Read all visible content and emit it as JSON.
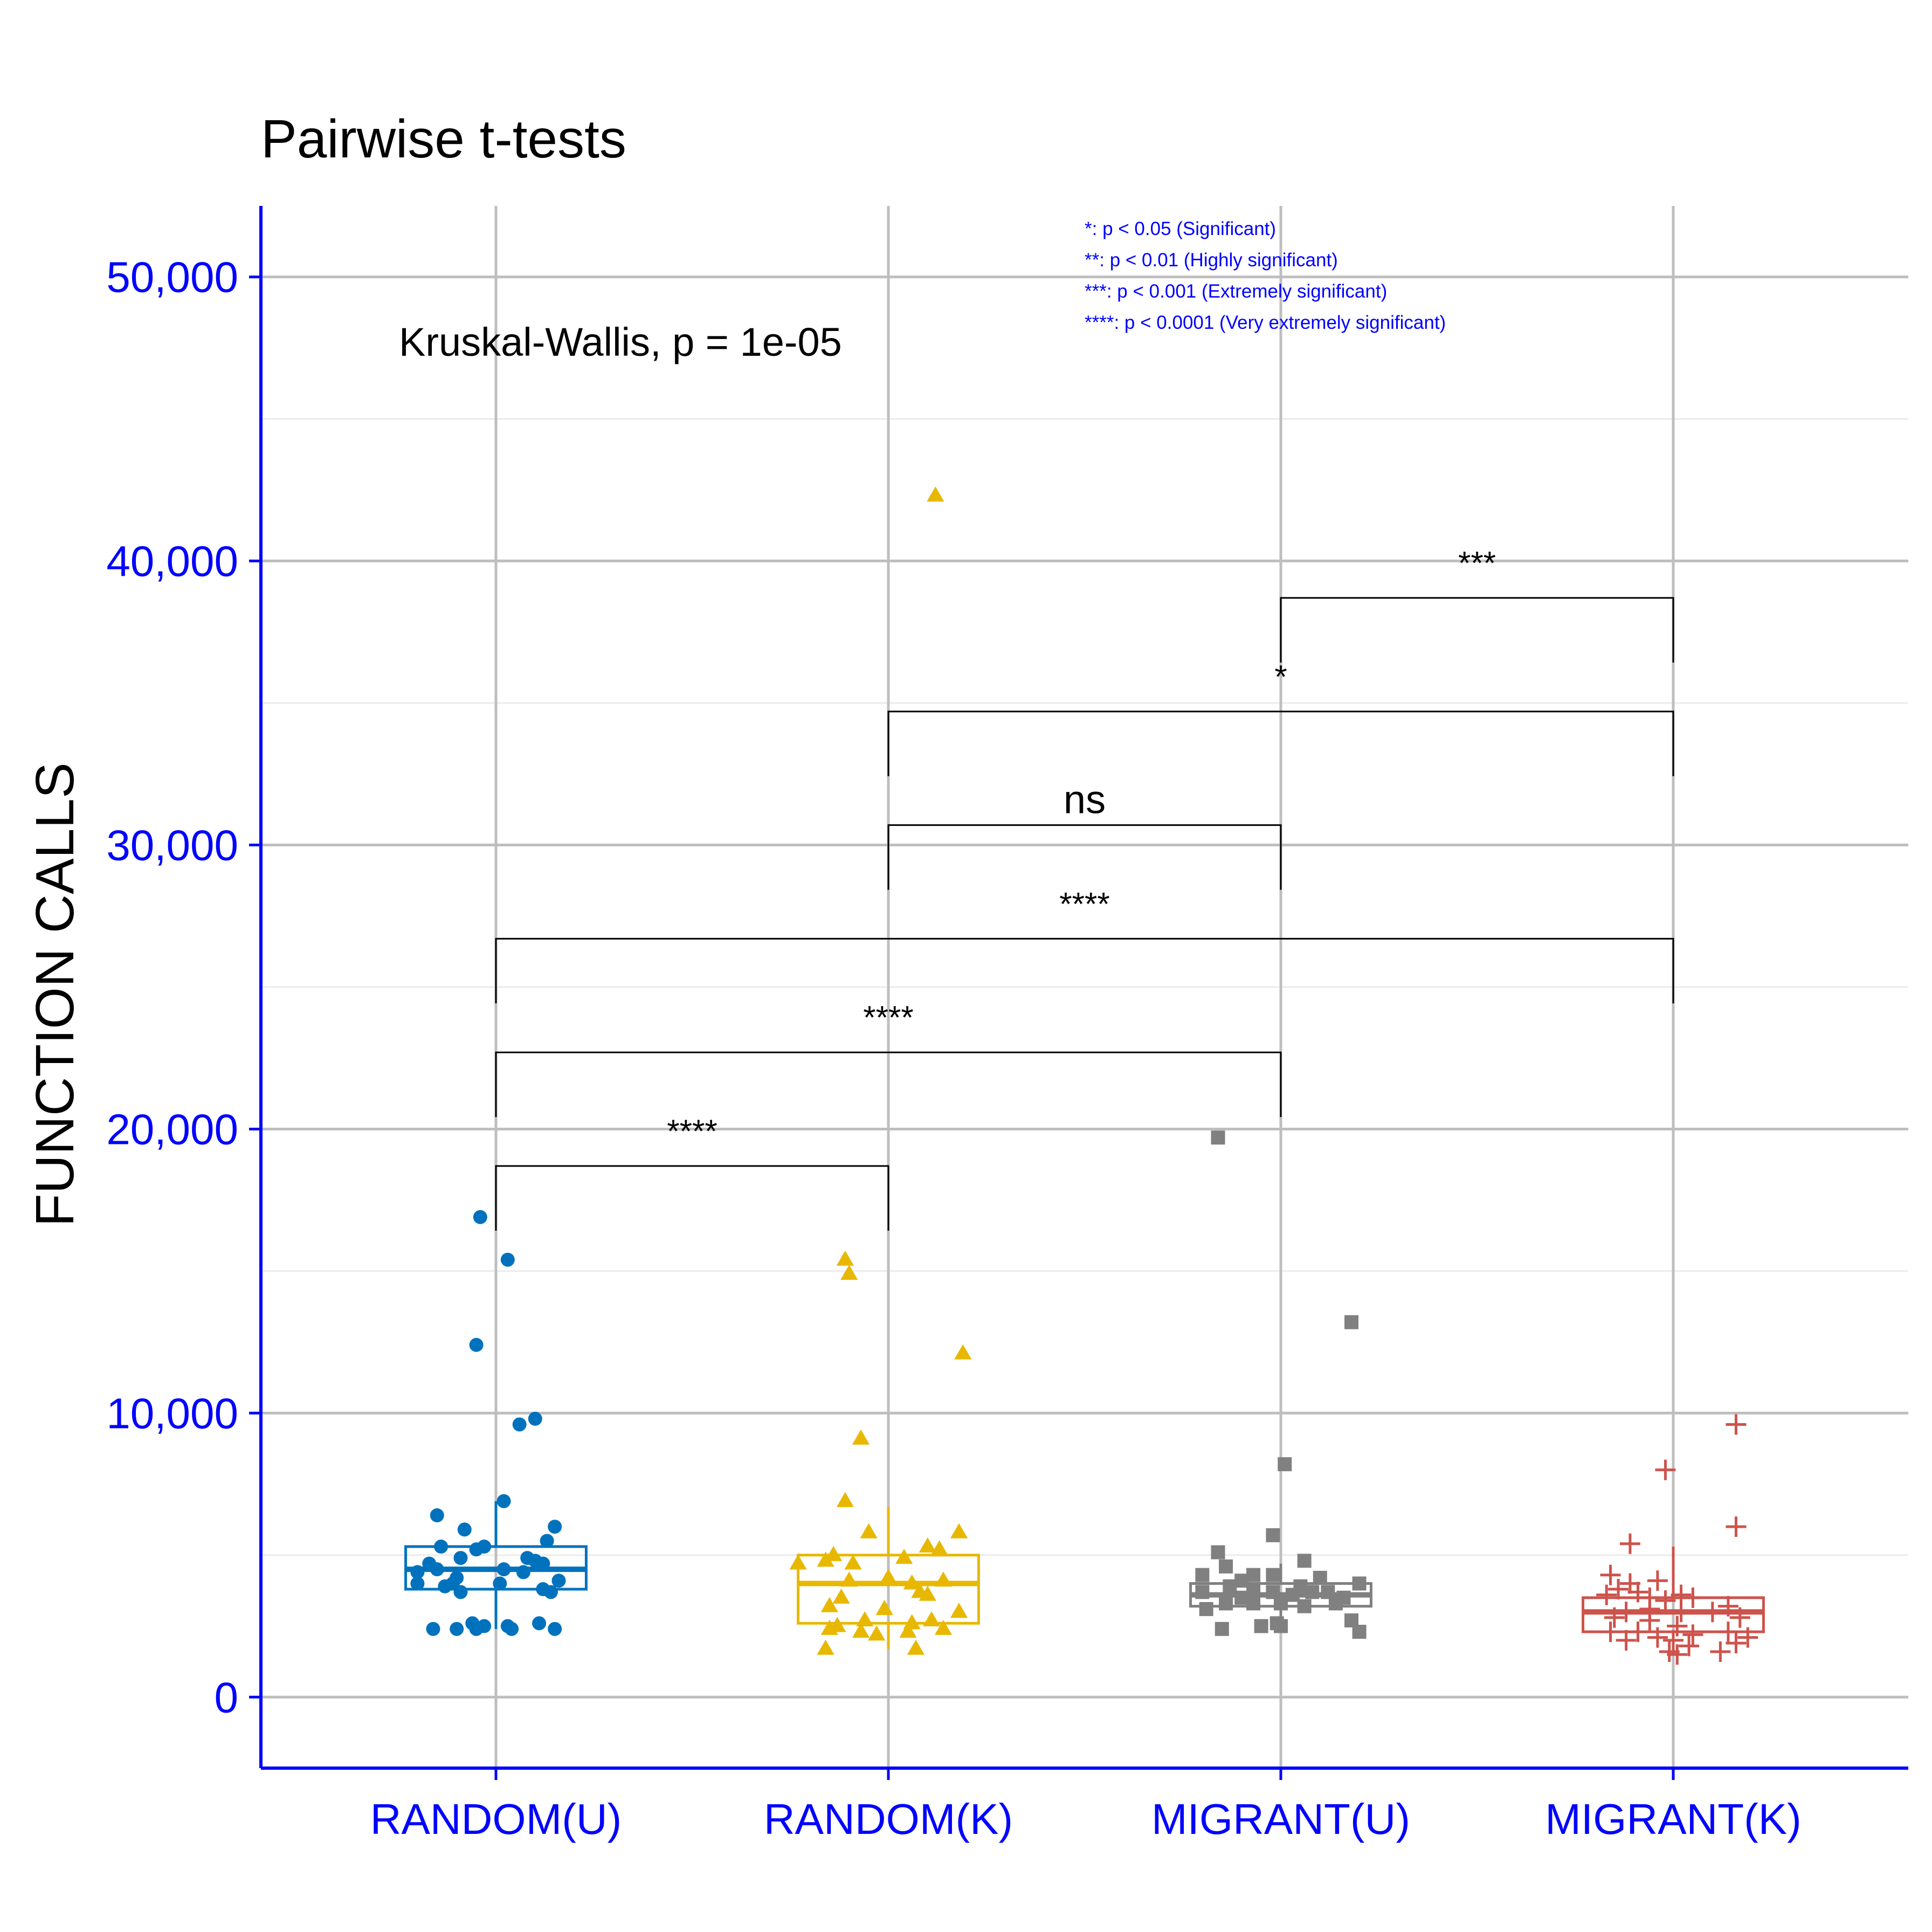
{
  "chart_data": {
    "type": "box",
    "title": "Pairwise t-tests",
    "xlabel": "",
    "ylabel": "FUNCTION CALLS",
    "ylim": [
      -2500,
      52500
    ],
    "yticks": [
      0,
      10000,
      20000,
      30000,
      40000,
      50000
    ],
    "ytick_labels": [
      "0",
      "10,000",
      "20,000",
      "30,000",
      "40,000",
      "50,000"
    ],
    "grid": true,
    "axis_color": "#0000FF",
    "categories": [
      "RANDOM(U)",
      "RANDOM(K)",
      "MIGRANT(U)",
      "MIGRANT(K)"
    ],
    "kruskal_label": "Kruskal-Wallis, p = 1e-05",
    "legend_notes": [
      "*: p < 0.05 (Significant)",
      "**: p < 0.01 (Highly significant)",
      "***: p < 0.001 (Extremely significant)",
      "****: p < 0.0001 (Very extremely significant)"
    ],
    "series": [
      {
        "category": "RANDOM(U)",
        "color": "#0072BD",
        "shape": "circle",
        "box": {
          "q1": 3800,
          "median": 4500,
          "q3": 5300,
          "whisker_low": 2400,
          "whisker_high": 6900
        },
        "points": [
          [
            -0.04,
            16900
          ],
          [
            0.03,
            15400
          ],
          [
            -0.05,
            12400
          ],
          [
            0.1,
            9800
          ],
          [
            0.06,
            9600
          ],
          [
            0.02,
            6900
          ],
          [
            -0.15,
            6400
          ],
          [
            0.15,
            6000
          ],
          [
            -0.08,
            5900
          ],
          [
            0.13,
            5500
          ],
          [
            -0.14,
            5300
          ],
          [
            -0.03,
            5300
          ],
          [
            -0.05,
            5200
          ],
          [
            -0.09,
            4900
          ],
          [
            0.08,
            4900
          ],
          [
            -0.17,
            4700
          ],
          [
            0.1,
            4800
          ],
          [
            0.12,
            4700
          ],
          [
            -0.15,
            4500
          ],
          [
            0.02,
            4500
          ],
          [
            -0.2,
            4400
          ],
          [
            0.07,
            4400
          ],
          [
            -0.1,
            4200
          ],
          [
            -0.2,
            4000
          ],
          [
            0.16,
            4100
          ],
          [
            -0.11,
            4000
          ],
          [
            0.01,
            4000
          ],
          [
            -0.13,
            3900
          ],
          [
            0.12,
            3800
          ],
          [
            -0.09,
            3700
          ],
          [
            0.14,
            3700
          ],
          [
            -0.06,
            2600
          ],
          [
            -0.03,
            2500
          ],
          [
            0.03,
            2500
          ],
          [
            0.11,
            2600
          ],
          [
            -0.16,
            2400
          ],
          [
            -0.1,
            2400
          ],
          [
            -0.05,
            2400
          ],
          [
            0.04,
            2400
          ],
          [
            0.15,
            2400
          ]
        ]
      },
      {
        "category": "RANDOM(K)",
        "color": "#E8B800",
        "shape": "triangle",
        "box": {
          "q1": 2600,
          "median": 4000,
          "q3": 5000,
          "whisker_low": 1700,
          "whisker_high": 6700
        },
        "points": [
          [
            0.12,
            42300
          ],
          [
            -0.11,
            15400
          ],
          [
            -0.1,
            14900
          ],
          [
            0.19,
            12100
          ],
          [
            -0.07,
            9100
          ],
          [
            -0.11,
            6900
          ],
          [
            -0.05,
            5800
          ],
          [
            0.18,
            5800
          ],
          [
            0.1,
            5300
          ],
          [
            -0.14,
            5000
          ],
          [
            0.04,
            4900
          ],
          [
            0.13,
            5200
          ],
          [
            -0.16,
            4800
          ],
          [
            -0.23,
            4700
          ],
          [
            -0.09,
            4700
          ],
          [
            0.0,
            4200
          ],
          [
            0.06,
            4000
          ],
          [
            -0.1,
            4100
          ],
          [
            0.14,
            4100
          ],
          [
            -0.12,
            3500
          ],
          [
            0.08,
            3700
          ],
          [
            0.1,
            3600
          ],
          [
            -0.15,
            3200
          ],
          [
            -0.01,
            3100
          ],
          [
            0.18,
            3000
          ],
          [
            -0.06,
            2700
          ],
          [
            0.06,
            2600
          ],
          [
            0.11,
            2700
          ],
          [
            -0.13,
            2500
          ],
          [
            -0.15,
            2400
          ],
          [
            -0.07,
            2300
          ],
          [
            0.14,
            2400
          ],
          [
            -0.03,
            2200
          ],
          [
            0.05,
            2300
          ],
          [
            -0.16,
            1700
          ],
          [
            0.07,
            1700
          ]
        ]
      },
      {
        "category": "MIGRANT(U)",
        "color": "#808080",
        "shape": "square",
        "box": {
          "q1": 3200,
          "median": 3600,
          "q3": 4000,
          "whisker_low": 2400,
          "whisker_high": 4700
        },
        "points": [
          [
            -0.16,
            19700
          ],
          [
            0.18,
            13200
          ],
          [
            0.01,
            8200
          ],
          [
            -0.02,
            5700
          ],
          [
            -0.16,
            5100
          ],
          [
            0.06,
            4800
          ],
          [
            -0.14,
            4600
          ],
          [
            -0.2,
            4300
          ],
          [
            -0.07,
            4300
          ],
          [
            -0.02,
            4300
          ],
          [
            0.1,
            4200
          ],
          [
            -0.1,
            4100
          ],
          [
            -0.13,
            3900
          ],
          [
            0.2,
            4000
          ],
          [
            -0.07,
            3800
          ],
          [
            0.05,
            3900
          ],
          [
            0.12,
            3700
          ],
          [
            -0.2,
            3700
          ],
          [
            -0.02,
            3700
          ],
          [
            0.08,
            3700
          ],
          [
            -0.1,
            3500
          ],
          [
            0.03,
            3600
          ],
          [
            -0.14,
            3300
          ],
          [
            0.16,
            3500
          ],
          [
            0.14,
            3300
          ],
          [
            0.06,
            3200
          ],
          [
            -0.07,
            3300
          ],
          [
            -0.19,
            3100
          ],
          [
            0.0,
            3300
          ],
          [
            0.18,
            2700
          ],
          [
            -0.15,
            2400
          ],
          [
            -0.05,
            2500
          ],
          [
            -0.01,
            2600
          ],
          [
            0.0,
            2500
          ],
          [
            0.2,
            2300
          ]
        ]
      },
      {
        "category": "MIGRANT(K)",
        "color": "#CD534C",
        "shape": "plus",
        "box": {
          "q1": 2300,
          "median": 3000,
          "q3": 3500,
          "whisker_low": 1500,
          "whisker_high": 5300
        },
        "points": [
          [
            0.16,
            9600
          ],
          [
            -0.02,
            8000
          ],
          [
            0.16,
            6000
          ],
          [
            -0.11,
            5400
          ],
          [
            -0.16,
            4300
          ],
          [
            -0.04,
            4100
          ],
          [
            -0.11,
            4000
          ],
          [
            -0.14,
            3800
          ],
          [
            -0.17,
            3600
          ],
          [
            -0.09,
            3700
          ],
          [
            -0.06,
            3500
          ],
          [
            -0.02,
            3400
          ],
          [
            0.05,
            3500
          ],
          [
            0.02,
            3600
          ],
          [
            0.14,
            3200
          ],
          [
            -0.12,
            3000
          ],
          [
            -0.06,
            3100
          ],
          [
            0.02,
            3000
          ],
          [
            0.1,
            3000
          ],
          [
            0.17,
            2800
          ],
          [
            -0.15,
            2800
          ],
          [
            -0.06,
            2700
          ],
          [
            0.01,
            2500
          ],
          [
            -0.16,
            2300
          ],
          [
            -0.09,
            2300
          ],
          [
            0.05,
            2200
          ],
          [
            0.14,
            2300
          ],
          [
            -0.04,
            2100
          ],
          [
            0.0,
            2000
          ],
          [
            0.19,
            2100
          ],
          [
            -0.12,
            2000
          ],
          [
            0.16,
            1900
          ],
          [
            0.04,
            1800
          ],
          [
            -0.01,
            1600
          ],
          [
            0.12,
            1600
          ],
          [
            0.01,
            1500
          ]
        ]
      }
    ],
    "comparisons": [
      {
        "group1": "RANDOM(U)",
        "group2": "RANDOM(K)",
        "label": "****",
        "y": 18700
      },
      {
        "group1": "RANDOM(U)",
        "group2": "MIGRANT(U)",
        "label": "****",
        "y": 22700
      },
      {
        "group1": "RANDOM(U)",
        "group2": "MIGRANT(K)",
        "label": "****",
        "y": 26700
      },
      {
        "group1": "RANDOM(K)",
        "group2": "MIGRANT(U)",
        "label": "ns",
        "y": 30700
      },
      {
        "group1": "RANDOM(K)",
        "group2": "MIGRANT(K)",
        "label": "*",
        "y": 34700
      },
      {
        "group1": "MIGRANT(U)",
        "group2": "MIGRANT(K)",
        "label": "***",
        "y": 38700
      }
    ]
  }
}
